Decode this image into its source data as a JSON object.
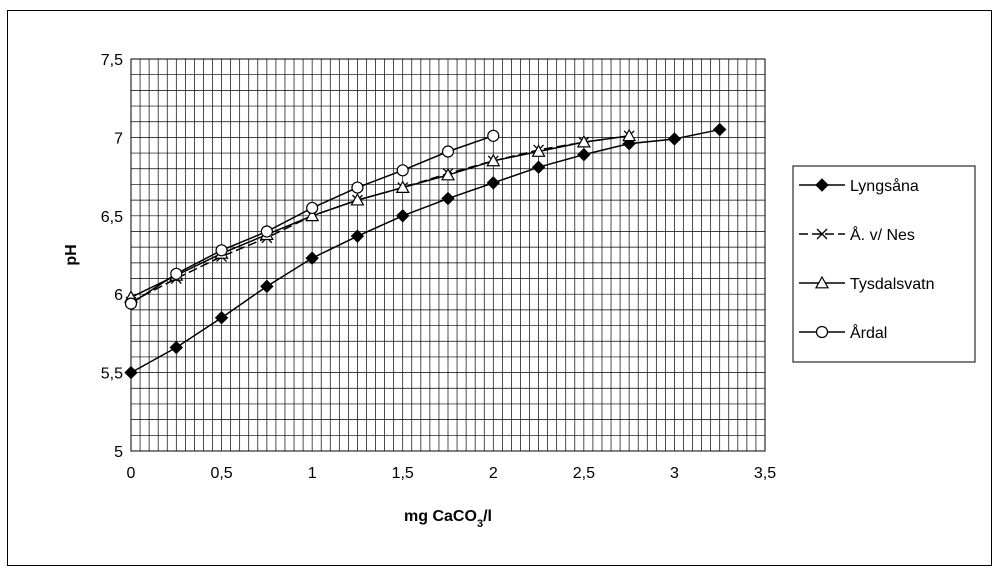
{
  "chart_data": {
    "type": "line",
    "title": "",
    "xlabel": "mg CaCO",
    "xlabel_sub": "3",
    "xlabel_suffix": "/l",
    "ylabel": "pH",
    "xlim": [
      0,
      3.5
    ],
    "ylim": [
      5,
      7.5
    ],
    "x_ticks": [
      "0",
      "0,5",
      "1",
      "1,5",
      "2",
      "2,5",
      "3",
      "3,5"
    ],
    "y_ticks": [
      "5",
      "5,5",
      "6",
      "6,5",
      "7",
      "7,5"
    ],
    "grid": true,
    "legend_position": "right",
    "series": [
      {
        "name": "Lyngsåna",
        "marker": "diamond",
        "dash": "solid",
        "x": [
          0,
          0.25,
          0.5,
          0.75,
          1,
          1.25,
          1.5,
          1.75,
          2,
          2.25,
          2.5,
          2.75,
          3,
          3.25
        ],
        "y": [
          5.5,
          5.66,
          5.85,
          6.05,
          6.23,
          6.37,
          6.5,
          6.61,
          6.71,
          6.81,
          6.89,
          6.96,
          6.99,
          7.05
        ]
      },
      {
        "name": "Å. v/ Nes",
        "marker": "x",
        "dash": "dashed",
        "x": [
          0,
          0.25,
          0.5,
          0.75,
          1,
          1.25,
          1.5,
          1.75,
          2,
          2.25,
          2.5,
          2.75
        ],
        "y": [
          5.95,
          6.1,
          6.24,
          6.36,
          6.5,
          6.6,
          6.68,
          6.77,
          6.85,
          6.92,
          6.97,
          7.01
        ]
      },
      {
        "name": "Tysdalsvatn",
        "marker": "triangle",
        "dash": "solid",
        "x": [
          0,
          0.25,
          0.5,
          0.75,
          1,
          1.25,
          1.5,
          1.75,
          2,
          2.25,
          2.5,
          2.75
        ],
        "y": [
          5.98,
          6.12,
          6.26,
          6.38,
          6.5,
          6.6,
          6.68,
          6.76,
          6.85,
          6.91,
          6.97,
          7.01
        ]
      },
      {
        "name": "Årdal",
        "marker": "circle",
        "dash": "solid",
        "x": [
          0,
          0.25,
          0.5,
          0.75,
          1,
          1.25,
          1.5,
          1.75,
          2
        ],
        "y": [
          5.94,
          6.13,
          6.28,
          6.4,
          6.55,
          6.68,
          6.79,
          6.91,
          7.01
        ]
      }
    ]
  }
}
